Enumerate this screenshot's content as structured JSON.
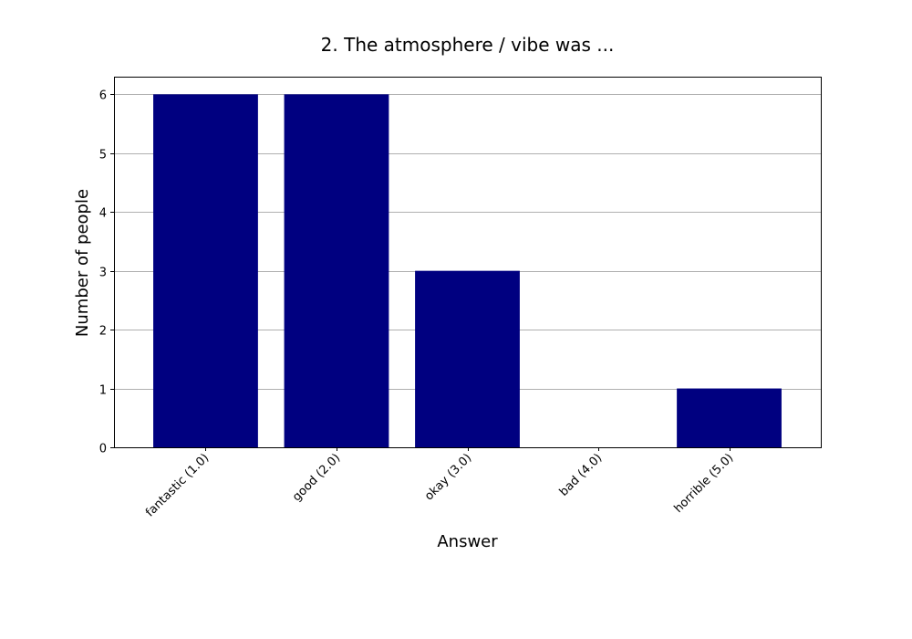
{
  "chart_data": {
    "type": "bar",
    "title": "2. The atmosphere / vibe was ...",
    "xlabel": "Answer",
    "ylabel": "Number of people",
    "categories": [
      "fantastic (1.0)",
      "good (2.0)",
      "okay (3.0)",
      "bad (4.0)",
      "horrible (5.0)"
    ],
    "values": [
      6,
      6,
      3,
      0,
      1
    ],
    "yticks": [
      "0",
      "1",
      "2",
      "3",
      "4",
      "5",
      "6"
    ],
    "ylim": [
      0,
      6.3
    ],
    "grid": true,
    "bar_color": "#000080",
    "grid_color": "#b0b0b0"
  }
}
